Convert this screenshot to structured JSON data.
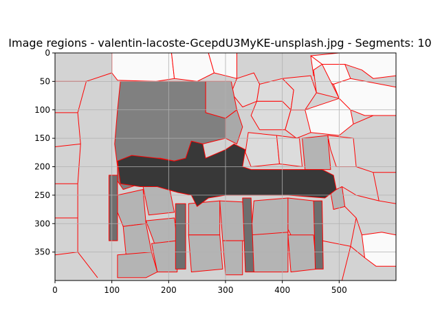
{
  "chart_data": {
    "type": "heatmap",
    "title": "Image regions - valentin-lacoste-GcepdU3MyKE-unsplash.jpg - Segments: 10",
    "xlabel": "",
    "ylabel": "",
    "xlim": [
      0,
      600
    ],
    "ylim": [
      400,
      0
    ],
    "x_ticks": [
      "0",
      "100",
      "200",
      "300",
      "400",
      "500"
    ],
    "y_ticks": [
      "0",
      "50",
      "100",
      "150",
      "200",
      "250",
      "300",
      "350"
    ],
    "grid": true,
    "boundary_color": "#ff0000",
    "region_colors": {
      "background": "#d3d3d3",
      "bright": "#fafafa",
      "light": "#dcdcdc",
      "mid_light": "#b4b4b4",
      "mid": "#a9a9a9",
      "dark_mid": "#808080",
      "gray": "#6e6e6e",
      "dark": "#383838"
    }
  }
}
